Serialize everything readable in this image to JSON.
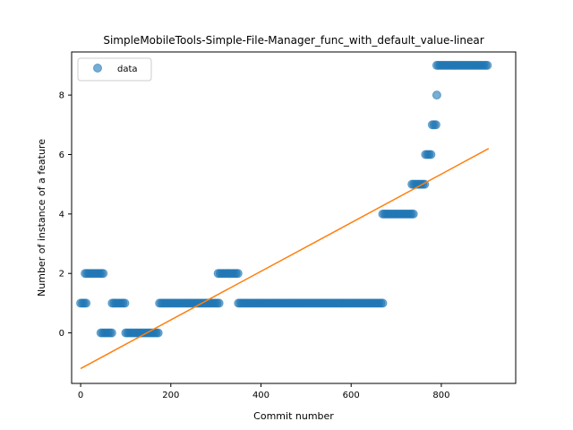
{
  "chart_data": {
    "type": "scatter",
    "title": "SimpleMobileTools-Simple-File-Manager_func_with_default_value-linear",
    "xlabel": "Commit number",
    "ylabel": "Number of instance of a feature",
    "xlim": [
      -20,
      965
    ],
    "ylim": [
      -1.7,
      9.45
    ],
    "xticks": [
      0,
      200,
      400,
      600,
      800
    ],
    "yticks": [
      0,
      2,
      4,
      6,
      8
    ],
    "grid": false,
    "legend_position": "top-left",
    "series": [
      {
        "name": "data",
        "kind": "points",
        "color": "#1f77b4",
        "segments": [
          {
            "x_start": 0,
            "x_end": 15,
            "y": 1
          },
          {
            "x_start": 10,
            "x_end": 50,
            "y": 2
          },
          {
            "x_start": 45,
            "x_end": 70,
            "y": 0
          },
          {
            "x_start": 70,
            "x_end": 100,
            "y": 1
          },
          {
            "x_start": 100,
            "x_end": 175,
            "y": 0
          },
          {
            "x_start": 175,
            "x_end": 310,
            "y": 1
          },
          {
            "x_start": 305,
            "x_end": 350,
            "y": 2
          },
          {
            "x_start": 350,
            "x_end": 670,
            "y": 1
          },
          {
            "x_start": 670,
            "x_end": 740,
            "y": 4
          },
          {
            "x_start": 735,
            "x_end": 765,
            "y": 5
          },
          {
            "x_start": 765,
            "x_end": 780,
            "y": 6
          },
          {
            "x_start": 780,
            "x_end": 790,
            "y": 7
          },
          {
            "x_start": 790,
            "x_end": 790,
            "y": 8
          },
          {
            "x_start": 790,
            "x_end": 905,
            "y": 9
          }
        ]
      },
      {
        "name": "",
        "kind": "line",
        "color": "#ff7f0e",
        "x": [
          0,
          905
        ],
        "y": [
          -1.2,
          6.2
        ]
      }
    ]
  }
}
